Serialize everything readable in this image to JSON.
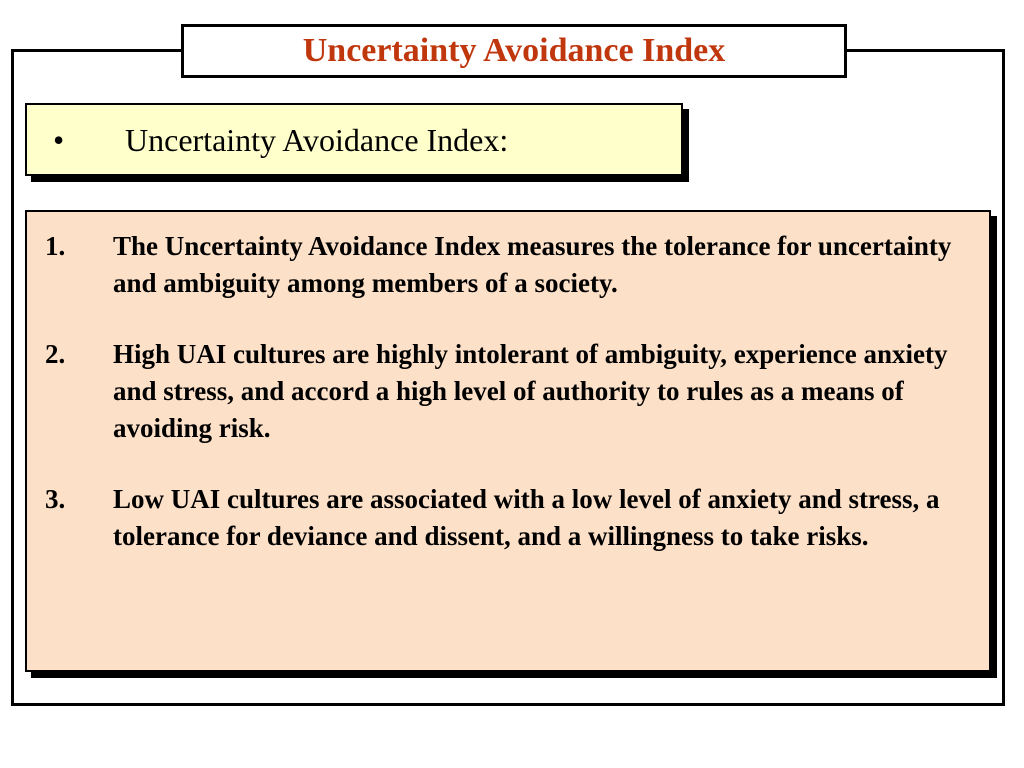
{
  "slide": {
    "title": "Uncertainty Avoidance Index",
    "subtitle": {
      "bullet": "•",
      "text": "Uncertainty Avoidance Index:"
    },
    "points": [
      {
        "number": "1.",
        "text": "The Uncertainty Avoidance Index measures the tolerance for uncertainty and ambiguity among members of a society."
      },
      {
        "number": "2.",
        "text": "High UAI cultures are highly intolerant of ambiguity, experience anxiety and stress, and accord a high level of authority to rules as a means of avoiding risk."
      },
      {
        "number": "3.",
        "text": "Low UAI cultures are associated with a low level of anxiety and stress, a tolerance for deviance and dissent, and a willingness to take risks."
      }
    ]
  },
  "colors": {
    "title": "#c0360d",
    "subtitle_background": "#ffffcc",
    "content_background": "#fde0c8",
    "border": "#000000"
  }
}
